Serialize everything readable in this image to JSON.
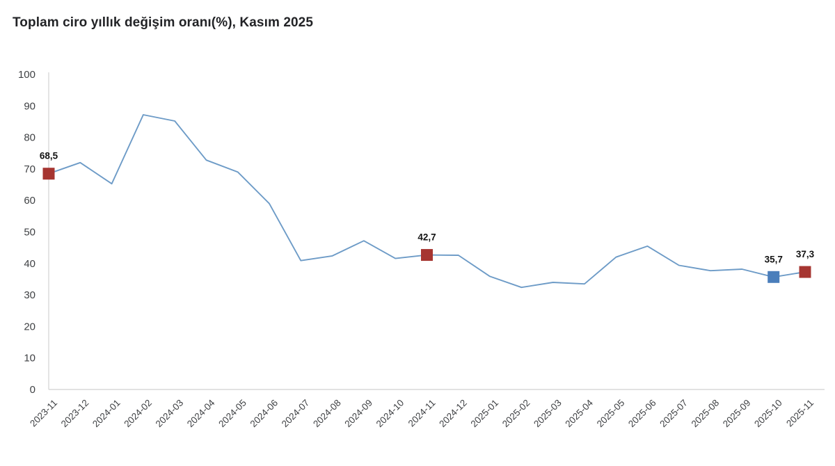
{
  "title": "Toplam ciro yıllık değişim oranı(%), Kasım 2025",
  "colors": {
    "line": "#6d9bc7",
    "axis": "#d8d8d8",
    "tick_text": "#3f4144",
    "marker_red": "#a63531",
    "marker_blue": "#4a7ebb",
    "title_text": "#222326",
    "background": "#ffffff"
  },
  "chart_data": {
    "type": "line",
    "title": "Toplam ciro yıllık değişim oranı(%), Kasım 2025",
    "xlabel": "",
    "ylabel": "",
    "ylim": [
      0,
      100
    ],
    "ytick_step": 10,
    "grid": false,
    "legend_position": "none",
    "x": [
      "2023-11",
      "2023-12",
      "2024-01",
      "2024-02",
      "2024-03",
      "2024-04",
      "2024-05",
      "2024-06",
      "2024-07",
      "2024-08",
      "2024-09",
      "2024-10",
      "2024-11",
      "2024-12",
      "2025-01",
      "2025-02",
      "2025-03",
      "2025-04",
      "2025-05",
      "2025-06",
      "2025-07",
      "2025-08",
      "2025-09",
      "2025-10",
      "2025-11"
    ],
    "series": [
      {
        "name": "Toplam ciro yıllık değişim oranı (%)",
        "values": [
          68.5,
          72.0,
          65.3,
          87.2,
          85.2,
          72.8,
          69.0,
          59.0,
          40.9,
          42.4,
          47.2,
          41.6,
          42.7,
          42.6,
          35.9,
          32.4,
          34.0,
          33.5,
          42.0,
          45.5,
          39.4,
          37.7,
          38.2,
          35.7,
          37.3
        ]
      }
    ],
    "annotations": [
      {
        "x": "2023-11",
        "label": "68,5",
        "marker": "square",
        "marker_color": "#a63531"
      },
      {
        "x": "2024-11",
        "label": "42,7",
        "marker": "square",
        "marker_color": "#a63531"
      },
      {
        "x": "2025-10",
        "label": "35,7",
        "marker": "square",
        "marker_color": "#4a7ebb"
      },
      {
        "x": "2025-11",
        "label": "37,3",
        "marker": "square",
        "marker_color": "#a63531"
      }
    ]
  }
}
